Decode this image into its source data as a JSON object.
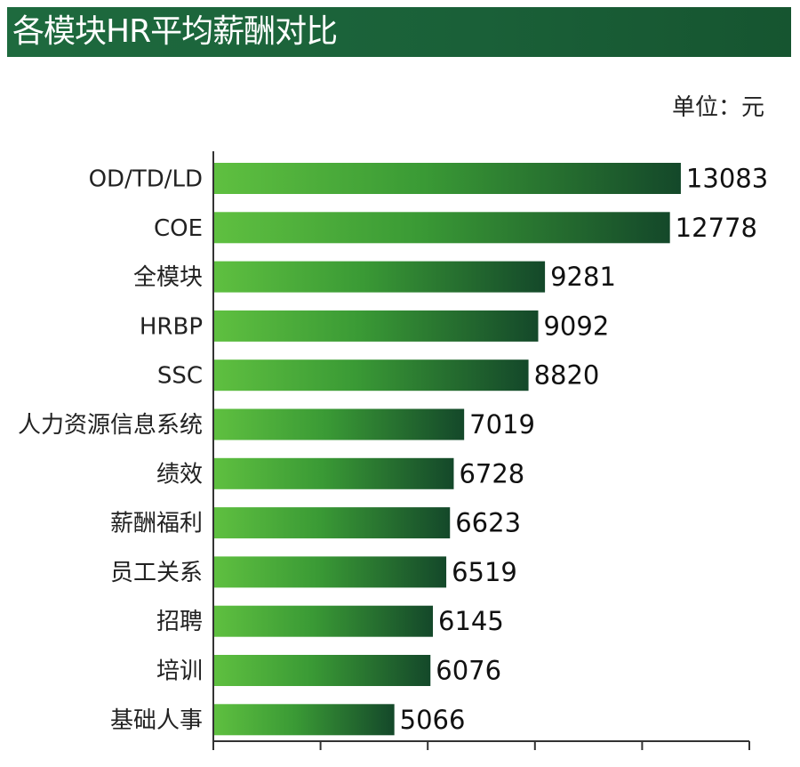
{
  "header": {
    "title": "各模块HR平均薪酬对比",
    "unit": "单位：元"
  },
  "colors": {
    "title_bg": "#1a6038",
    "bar_start": "#5fc040",
    "bar_end": "#14482a",
    "axis": "#333333"
  },
  "chart_data": {
    "type": "bar",
    "orientation": "horizontal",
    "title": "各模块HR平均薪酬对比",
    "unit": "单位：元",
    "categories": [
      "OD/TD/LD",
      "COE",
      "全模块",
      "HRBP",
      "SSC",
      "人力资源信息系统",
      "绩效",
      "薪酬福利",
      "员工关系",
      "招聘",
      "培训",
      "基础人事"
    ],
    "values": [
      13083,
      12778,
      9281,
      9092,
      8820,
      7019,
      6728,
      6623,
      6519,
      6145,
      6076,
      5066
    ],
    "xlim": [
      0,
      15000
    ],
    "grid": false,
    "legend": "none"
  }
}
